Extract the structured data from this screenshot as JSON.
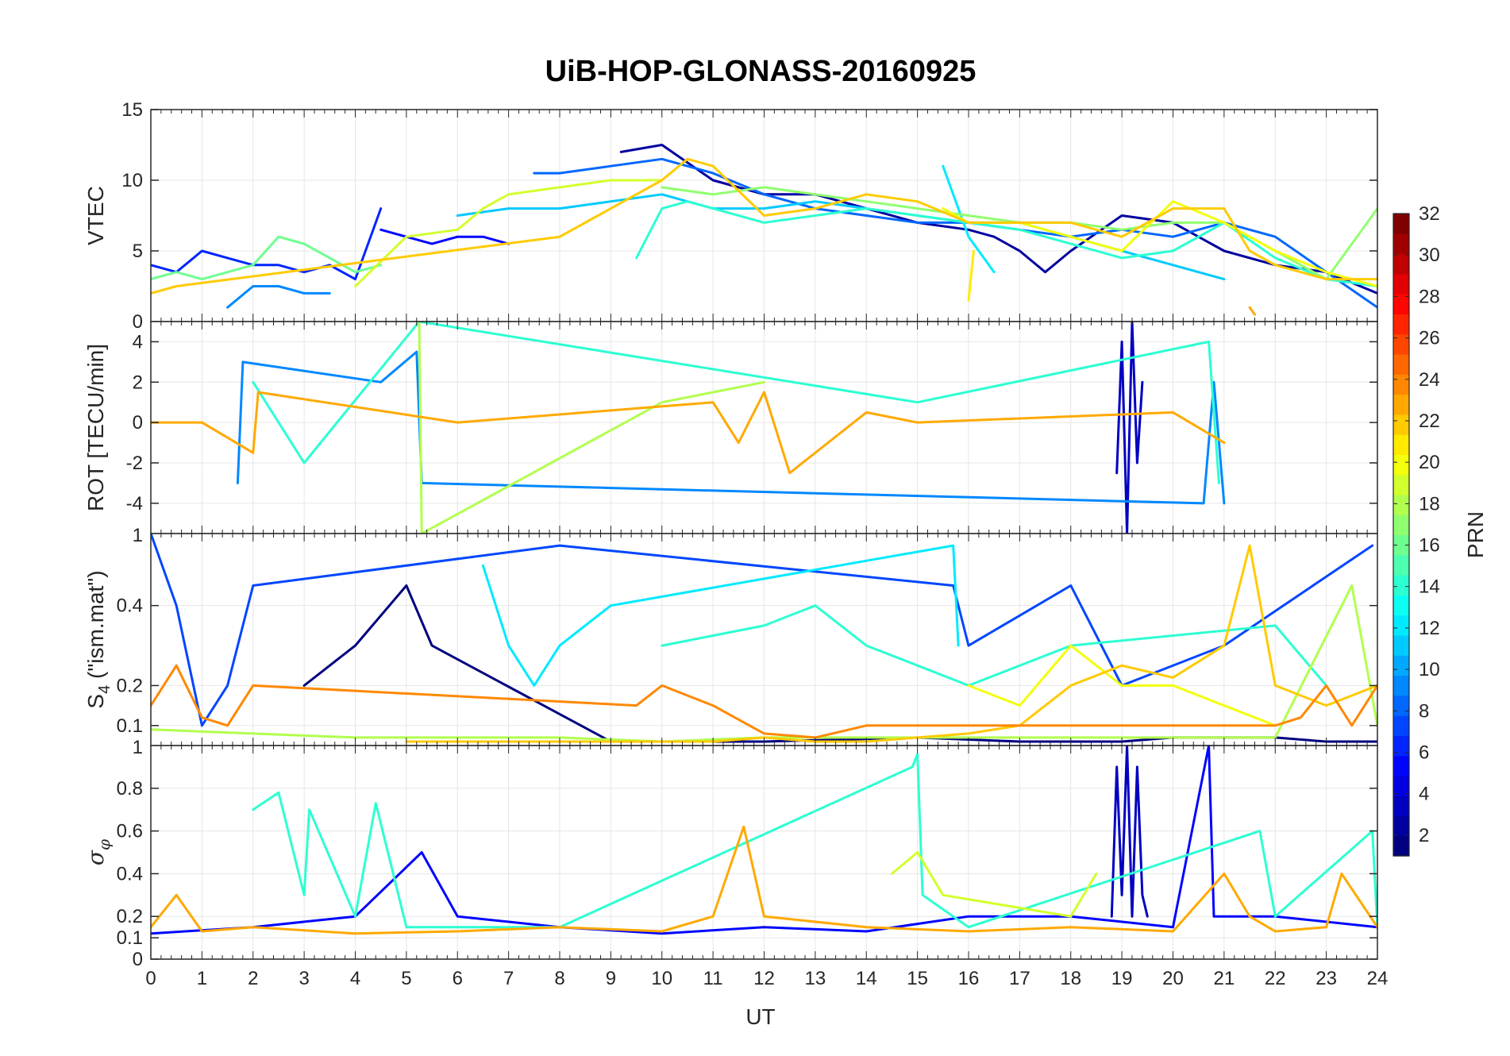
{
  "chart_data": {
    "type": "line",
    "title": "UiB-HOP-GLONASS-20160925",
    "xlabel": "UT",
    "xlim": [
      0,
      24
    ],
    "xticks": [
      "0",
      "1",
      "2",
      "3",
      "4",
      "5",
      "6",
      "7",
      "8",
      "9",
      "10",
      "11",
      "12",
      "13",
      "14",
      "15",
      "16",
      "17",
      "18",
      "19",
      "20",
      "21",
      "22",
      "23",
      "24"
    ],
    "grid": true,
    "panels": [
      {
        "id": "vtec",
        "ylabel": "VTEC",
        "ylim": [
          0,
          15
        ],
        "yticks": [
          0,
          5,
          10,
          15
        ],
        "ytick_labels": [
          "0",
          "5",
          "10",
          "15"
        ],
        "series": [
          {
            "name": "PRN 2",
            "x": [
              9.2,
              10,
              11,
              12,
              13,
              14,
              15,
              16,
              16.5,
              17,
              17.5,
              18,
              19,
              20,
              21,
              22,
              23,
              24
            ],
            "y": [
              12,
              12.5,
              10,
              9,
              9,
              8,
              7,
              6.5,
              6,
              5,
              3.5,
              5,
              7.5,
              7,
              5,
              4,
              3.5,
              2
            ]
          },
          {
            "name": "PRN 5",
            "x": [
              4.5,
              5,
              5.5,
              6,
              6.5,
              7
            ],
            "y": [
              6.5,
              6,
              5.5,
              6,
              6,
              5.5
            ]
          },
          {
            "name": "PRN 6",
            "x": [
              0,
              0.5,
              1,
              1.5,
              2,
              2.5,
              3,
              3.5,
              4,
              4.5
            ],
            "y": [
              4,
              3.5,
              5,
              4.5,
              4,
              4,
              3.5,
              4,
              3,
              8
            ]
          },
          {
            "name": "PRN 8",
            "x": [
              7.5,
              8,
              9,
              10,
              11,
              12,
              13,
              14,
              15,
              16,
              17,
              18,
              19,
              20,
              21,
              22,
              23,
              24
            ],
            "y": [
              10.5,
              10.5,
              11,
              11.5,
              10.5,
              9,
              8,
              7.5,
              7,
              7,
              6.5,
              6,
              6.5,
              6,
              7,
              6,
              3.5,
              1
            ]
          },
          {
            "name": "PRN 9",
            "x": [
              1.5,
              2,
              2.5,
              3,
              3.5
            ],
            "y": [
              1,
              2.5,
              2.5,
              2,
              2
            ]
          },
          {
            "name": "PRN 11",
            "x": [
              6,
              7,
              8,
              9,
              10,
              11,
              12,
              13,
              14,
              15,
              16,
              17,
              18,
              19,
              20,
              21
            ],
            "y": [
              7.5,
              8,
              8,
              8.5,
              9,
              8,
              8,
              8.5,
              8,
              7.5,
              7,
              7,
              6,
              5,
              4,
              3
            ]
          },
          {
            "name": "PRN 12",
            "x": [
              15.5,
              16,
              16.5
            ],
            "y": [
              11,
              6,
              3.5
            ]
          },
          {
            "name": "PRN 14",
            "x": [
              9.5,
              10,
              10.5,
              11,
              12,
              13,
              14,
              15,
              16,
              17,
              18,
              19,
              20,
              21,
              22,
              23,
              24
            ],
            "y": [
              4.5,
              8,
              8.5,
              8,
              7,
              7.5,
              8,
              7.5,
              7,
              6.5,
              5.5,
              4.5,
              5,
              7,
              4.5,
              3,
              2.5
            ]
          },
          {
            "name": "PRN 16",
            "x": [
              0,
              0.5,
              1,
              1.5,
              2,
              2.5,
              3,
              3.5,
              4,
              4.5
            ],
            "y": [
              3,
              3.5,
              3,
              3.5,
              4,
              6,
              5.5,
              4.5,
              3.5,
              4
            ]
          },
          {
            "name": "PRN 17",
            "x": [
              10,
              11,
              12,
              13,
              14,
              15,
              16,
              17,
              18,
              19,
              20,
              21,
              22,
              23,
              24
            ],
            "y": [
              9.5,
              9,
              9.5,
              9,
              8.5,
              8,
              7.5,
              7,
              7,
              6.5,
              7,
              7,
              5,
              3,
              8
            ]
          },
          {
            "name": "PRN 19",
            "x": [
              4,
              5,
              6,
              6.5,
              7,
              8,
              9,
              10
            ],
            "y": [
              2.5,
              6,
              6.5,
              8,
              9,
              9.5,
              10,
              10
            ]
          },
          {
            "name": "PRN 20",
            "x": [
              15.5,
              16,
              16.5,
              17,
              18,
              19,
              20,
              21,
              22,
              23,
              24
            ],
            "y": [
              8,
              7,
              7,
              7,
              6,
              5,
              8.5,
              7,
              5,
              3.5,
              2.5
            ]
          },
          {
            "name": "PRN 21",
            "x": [
              16,
              16.1
            ],
            "y": [
              1.5,
              5
            ]
          },
          {
            "name": "PRN 22",
            "x": [
              0,
              0.5,
              8,
              9,
              10,
              10.5,
              11,
              12,
              13,
              14,
              15,
              16,
              17,
              18,
              19,
              20,
              21,
              21.5,
              22,
              23,
              24
            ],
            "y": [
              2,
              2.5,
              6,
              8,
              10,
              11.5,
              11,
              7.5,
              8,
              9,
              8.5,
              7,
              7,
              7,
              6,
              8,
              8,
              5,
              4,
              3,
              3
            ]
          },
          {
            "name": "PRN 23",
            "x": [
              21.5,
              21.6
            ],
            "y": [
              1,
              0.5
            ]
          }
        ]
      },
      {
        "id": "rot",
        "ylabel": "ROT [TECU/min]",
        "ylim": [
          -5.5,
          5
        ],
        "yticks": [
          -4,
          -2,
          0,
          2,
          4
        ],
        "ytick_labels": [
          "-4",
          "-2",
          "0",
          "2",
          "4"
        ],
        "series": [
          {
            "name": "PRN 3",
            "x": [
              18.9,
              19,
              19.1,
              19.2,
              19.3,
              19.4
            ],
            "y": [
              -2.5,
              4,
              -5.5,
              5,
              -2,
              2
            ]
          },
          {
            "name": "PRN 9",
            "x": [
              1.7,
              1.8,
              4.5,
              5.2,
              5.3,
              20.6,
              20.8,
              21
            ],
            "y": [
              -3,
              3,
              2,
              3.5,
              -3,
              -4,
              2,
              -4
            ]
          },
          {
            "name": "PRN 14",
            "x": [
              2,
              3,
              5.25,
              15,
              20.7,
              20.9
            ],
            "y": [
              2,
              -2,
              5,
              1,
              4,
              -3
            ]
          },
          {
            "name": "PRN 18",
            "x": [
              5.25,
              5.3,
              10,
              12
            ],
            "y": [
              5,
              -5.5,
              1,
              2
            ]
          },
          {
            "name": "PRN 23",
            "x": [
              0,
              1,
              2,
              2.1,
              6,
              11,
              11.5,
              12,
              12.5,
              14,
              15,
              20,
              21
            ],
            "y": [
              0,
              0,
              -1.5,
              1.5,
              0,
              1,
              -1,
              1.5,
              -2.5,
              0.5,
              0,
              0.5,
              -1
            ]
          }
        ]
      },
      {
        "id": "s4",
        "ylabel": "S4 (\"ism.mat\")",
        "ylabel_main": "S",
        "ylabel_sub": "4",
        "ylabel_tail": " (\"ism.mat\")",
        "ylim": [
          0.05,
          0.58
        ],
        "yticks": [
          0.1,
          0.2,
          0.4
        ],
        "ytick_labels": [
          "0.1",
          "0.2",
          "0.4"
        ],
        "top_tick_label": "1",
        "series": [
          {
            "name": "PRN 1",
            "x": [
              3,
              4,
              5,
              5.5,
              9,
              12,
              15,
              17,
              18,
              19,
              20,
              21,
              22,
              23,
              24
            ],
            "y": [
              0.2,
              0.3,
              0.45,
              0.3,
              0.06,
              0.06,
              0.07,
              0.06,
              0.06,
              0.06,
              0.07,
              0.07,
              0.07,
              0.06,
              0.06
            ]
          },
          {
            "name": "PRN 7",
            "x": [
              0,
              0.5,
              1,
              1.5,
              2,
              8,
              15.7,
              16,
              18,
              19,
              21,
              23.9
            ],
            "y": [
              0.58,
              0.4,
              0.1,
              0.2,
              0.45,
              0.55,
              0.45,
              0.3,
              0.45,
              0.2,
              0.3,
              0.55
            ]
          },
          {
            "name": "PRN 12",
            "x": [
              6.5,
              7,
              7.5,
              8,
              9,
              15.7,
              15.8
            ],
            "y": [
              0.5,
              0.3,
              0.2,
              0.3,
              0.4,
              0.55,
              0.3
            ]
          },
          {
            "name": "PRN 14",
            "x": [
              10,
              12,
              13,
              14,
              15,
              16,
              18,
              22,
              23
            ],
            "y": [
              0.3,
              0.35,
              0.4,
              0.3,
              0.25,
              0.2,
              0.3,
              0.35,
              0.2
            ]
          },
          {
            "name": "PRN 18",
            "x": [
              0,
              2,
              4,
              6,
              8,
              10,
              12,
              14,
              16,
              18,
              20,
              22,
              23.5,
              24
            ],
            "y": [
              0.09,
              0.08,
              0.07,
              0.07,
              0.07,
              0.06,
              0.07,
              0.07,
              0.07,
              0.07,
              0.07,
              0.07,
              0.45,
              0.1
            ]
          },
          {
            "name": "PRN 20",
            "x": [
              16,
              17,
              18,
              19,
              20,
              21,
              22
            ],
            "y": [
              0.2,
              0.15,
              0.3,
              0.2,
              0.2,
              0.15,
              0.1
            ]
          },
          {
            "name": "PRN 22",
            "x": [
              5,
              6,
              7,
              8,
              9,
              10,
              11,
              12,
              13,
              14,
              15,
              16,
              17,
              18,
              19,
              20,
              21,
              21.5,
              22,
              23,
              24
            ],
            "y": [
              0.06,
              0.06,
              0.06,
              0.06,
              0.06,
              0.06,
              0.06,
              0.07,
              0.06,
              0.06,
              0.07,
              0.08,
              0.1,
              0.2,
              0.25,
              0.22,
              0.3,
              0.55,
              0.2,
              0.15,
              0.2
            ]
          },
          {
            "name": "PRN 24",
            "x": [
              0,
              0.5,
              1,
              1.5,
              2,
              9.5,
              10,
              11,
              12,
              13,
              14,
              22,
              22.5,
              23,
              23.5,
              24
            ],
            "y": [
              0.15,
              0.25,
              0.12,
              0.1,
              0.2,
              0.15,
              0.2,
              0.15,
              0.08,
              0.07,
              0.1,
              0.1,
              0.12,
              0.2,
              0.1,
              0.2
            ]
          }
        ]
      },
      {
        "id": "sigma_phi",
        "ylabel": "σφ",
        "ylabel_main": "σ",
        "ylabel_sub": "φ",
        "ylim": [
          0,
          1
        ],
        "yticks": [
          0,
          0.1,
          0.2,
          0.4,
          0.6,
          0.8
        ],
        "ytick_labels": [
          "0",
          "0.1",
          "0.2",
          "0.4",
          "0.6",
          "0.8"
        ],
        "top_tick_label": "1",
        "series": [
          {
            "name": "PRN 3",
            "x": [
              18.8,
              18.9,
              19,
              19.1,
              19.2,
              19.3,
              19.4,
              19.5
            ],
            "y": [
              0.2,
              0.9,
              0.3,
              1,
              0.2,
              0.9,
              0.3,
              0.2
            ]
          },
          {
            "name": "PRN 5",
            "x": [
              0,
              2,
              4,
              5.3,
              6,
              8,
              10,
              12,
              14,
              16,
              18,
              20,
              20.7,
              20.8,
              22,
              24
            ],
            "y": [
              0.12,
              0.15,
              0.2,
              0.5,
              0.2,
              0.15,
              0.12,
              0.15,
              0.13,
              0.2,
              0.2,
              0.15,
              1,
              0.2,
              0.2,
              0.15
            ]
          },
          {
            "name": "PRN 14",
            "x": [
              2,
              2.5,
              3,
              3.1,
              4,
              4.4,
              5,
              8,
              14.9,
              15,
              15.1,
              16,
              21.7,
              22,
              23.9,
              24
            ],
            "y": [
              0.7,
              0.78,
              0.3,
              0.7,
              0.2,
              0.73,
              0.15,
              0.15,
              0.9,
              0.96,
              0.3,
              0.15,
              0.6,
              0.2,
              0.6,
              0.15
            ]
          },
          {
            "name": "PRN 19",
            "x": [
              14.5,
              15,
              15.5,
              18,
              18.5
            ],
            "y": [
              0.4,
              0.5,
              0.3,
              0.2,
              0.4
            ]
          },
          {
            "name": "PRN 23",
            "x": [
              0,
              0.5,
              1,
              2,
              4,
              6,
              8,
              10,
              11,
              11.6,
              12,
              14,
              16,
              18,
              20,
              21,
              21.5,
              22,
              23,
              23.3,
              24
            ],
            "y": [
              0.15,
              0.3,
              0.13,
              0.15,
              0.12,
              0.13,
              0.15,
              0.13,
              0.2,
              0.62,
              0.2,
              0.15,
              0.13,
              0.15,
              0.13,
              0.4,
              0.2,
              0.13,
              0.15,
              0.4,
              0.15
            ]
          }
        ]
      }
    ],
    "colorbar": {
      "label": "PRN",
      "range": [
        1,
        32
      ],
      "ticks": [
        2,
        4,
        6,
        8,
        10,
        12,
        14,
        16,
        18,
        20,
        22,
        24,
        26,
        28,
        30,
        32
      ],
      "colormap": "jet"
    }
  }
}
